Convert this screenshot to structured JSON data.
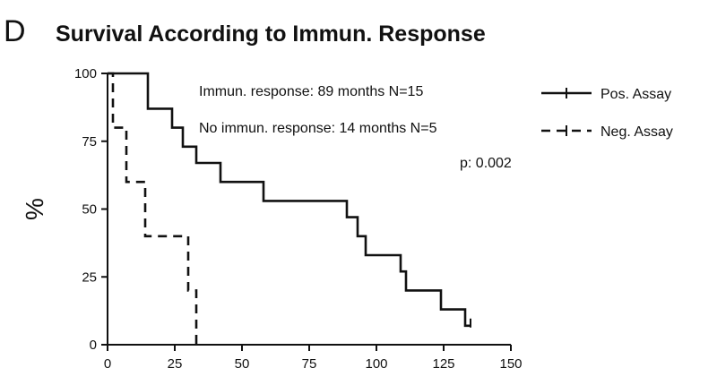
{
  "panel_letter": "D",
  "chart_data": {
    "type": "line",
    "subtype": "kaplan-meier step",
    "title": "Survival According to Immun. Response",
    "xlabel": "",
    "ylabel": "%",
    "xlim": [
      0,
      150
    ],
    "ylim": [
      0,
      100
    ],
    "x_ticks": [
      0,
      25,
      50,
      75,
      100,
      125,
      150
    ],
    "y_ticks": [
      0,
      25,
      50,
      75,
      100
    ],
    "grid": false,
    "legend_position": "top-right",
    "series": [
      {
        "name": "Pos. Assay",
        "style": "solid",
        "color": "#111111",
        "points": [
          [
            0,
            100
          ],
          [
            15,
            100
          ],
          [
            15,
            87
          ],
          [
            24,
            87
          ],
          [
            24,
            80
          ],
          [
            28,
            80
          ],
          [
            28,
            73
          ],
          [
            33,
            73
          ],
          [
            33,
            67
          ],
          [
            42,
            67
          ],
          [
            42,
            60
          ],
          [
            58,
            60
          ],
          [
            58,
            53
          ],
          [
            89,
            53
          ],
          [
            89,
            47
          ],
          [
            93,
            47
          ],
          [
            93,
            40
          ],
          [
            96,
            40
          ],
          [
            96,
            33
          ],
          [
            109,
            33
          ],
          [
            109,
            27
          ],
          [
            111,
            27
          ],
          [
            111,
            20
          ],
          [
            124,
            20
          ],
          [
            124,
            13
          ],
          [
            133,
            13
          ],
          [
            133,
            7
          ],
          [
            135,
            7
          ]
        ],
        "censor_end": [
          135,
          7
        ]
      },
      {
        "name": "Neg. Assay",
        "style": "dashed",
        "color": "#111111",
        "points": [
          [
            0,
            100
          ],
          [
            2,
            100
          ],
          [
            2,
            80
          ],
          [
            7,
            80
          ],
          [
            7,
            60
          ],
          [
            14,
            60
          ],
          [
            14,
            40
          ],
          [
            30,
            40
          ],
          [
            30,
            20
          ],
          [
            33,
            20
          ],
          [
            33,
            0
          ]
        ]
      }
    ],
    "annotations": [
      "Immun. response: 89 months  N=15",
      "No immun. response: 14 months  N=5",
      "p: 0.002"
    ]
  }
}
